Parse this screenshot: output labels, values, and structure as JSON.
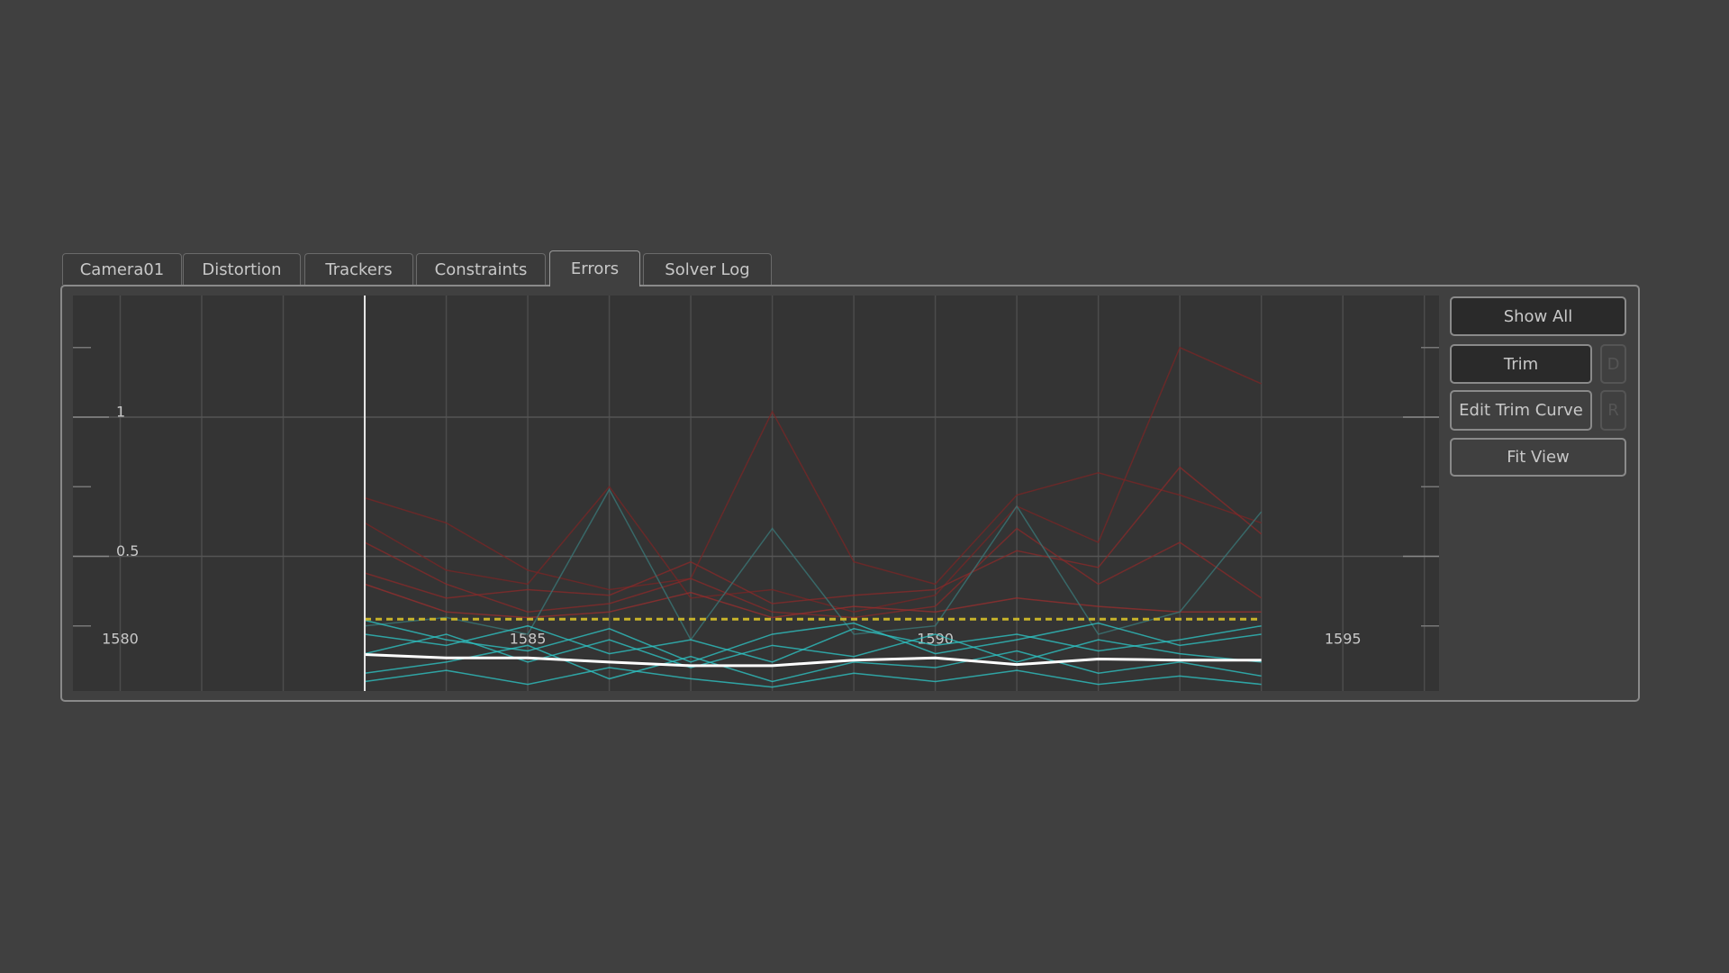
{
  "tabs": [
    "Camera01",
    "Distortion",
    "Trackers",
    "Constraints",
    "Errors",
    "Solver Log"
  ],
  "active_tab": 4,
  "buttons": {
    "show_all": "Show All",
    "trim": "Trim",
    "trim_key": "D",
    "edit_trim_curve": "Edit Trim Curve",
    "edit_key": "R",
    "fit_view": "Fit View"
  },
  "chart_data": {
    "type": "line",
    "xlim": [
      1579.42,
      1596.18
    ],
    "ylim": [
      0.016,
      1.437
    ],
    "xticks": [
      1580,
      1585,
      1590,
      1595
    ],
    "minor_xticks": [
      1581,
      1582,
      1583,
      1584,
      1586,
      1587,
      1588,
      1589,
      1591,
      1592,
      1593,
      1594,
      1596
    ],
    "yticks": [
      0.5,
      1
    ],
    "minor_yticks": [
      0.25,
      0.75,
      1.25
    ],
    "current_frame": 1583,
    "threshold": 0.274,
    "threshold_color": "#c8b42a",
    "x": [
      1583,
      1584,
      1585,
      1586,
      1587,
      1588,
      1589,
      1590,
      1591,
      1592,
      1593,
      1594
    ],
    "series": [
      {
        "color": "#7a2626",
        "values": [
          0.71,
          0.62,
          0.45,
          0.38,
          0.42,
          1.02,
          0.48,
          0.4,
          0.72,
          0.8,
          0.72,
          0.62
        ]
      },
      {
        "color": "#7a2626",
        "values": [
          0.62,
          0.45,
          0.4,
          0.75,
          0.35,
          0.38,
          0.3,
          0.36,
          0.68,
          0.55,
          1.25,
          1.12
        ]
      },
      {
        "color": "#8a2a2a",
        "values": [
          0.44,
          0.35,
          0.38,
          0.36,
          0.48,
          0.33,
          0.36,
          0.38,
          0.52,
          0.46,
          0.82,
          0.58
        ]
      },
      {
        "color": "#8a2a2a",
        "values": [
          0.55,
          0.4,
          0.3,
          0.33,
          0.42,
          0.3,
          0.28,
          0.32,
          0.6,
          0.4,
          0.55,
          0.35
        ]
      },
      {
        "color": "#9a2e2e",
        "values": [
          0.4,
          0.3,
          0.28,
          0.3,
          0.37,
          0.28,
          0.32,
          0.3,
          0.35,
          0.32,
          0.3,
          0.3
        ]
      },
      {
        "color": "#3a7a7a",
        "values": [
          0.25,
          0.28,
          0.22,
          0.74,
          0.2,
          0.6,
          0.22,
          0.25,
          0.68,
          0.22,
          0.3,
          0.66
        ]
      },
      {
        "color": "#2ec8c8",
        "values": [
          0.22,
          0.18,
          0.25,
          0.15,
          0.2,
          0.12,
          0.24,
          0.18,
          0.22,
          0.16,
          0.2,
          0.25
        ]
      },
      {
        "color": "#2ec8c8",
        "values": [
          0.15,
          0.22,
          0.12,
          0.2,
          0.1,
          0.18,
          0.14,
          0.22,
          0.12,
          0.2,
          0.15,
          0.12
        ]
      },
      {
        "color": "#2ec8c8",
        "values": [
          0.08,
          0.12,
          0.18,
          0.06,
          0.14,
          0.05,
          0.12,
          0.1,
          0.16,
          0.08,
          0.12,
          0.07
        ]
      },
      {
        "color": "#2ec8c8",
        "values": [
          0.27,
          0.2,
          0.16,
          0.24,
          0.12,
          0.22,
          0.26,
          0.15,
          0.2,
          0.26,
          0.18,
          0.22
        ]
      },
      {
        "color": "#2ec8c8",
        "values": [
          0.05,
          0.09,
          0.04,
          0.1,
          0.06,
          0.03,
          0.08,
          0.05,
          0.09,
          0.04,
          0.07,
          0.04
        ]
      },
      {
        "color": "#ffffff",
        "width": 3,
        "values": [
          0.147,
          0.135,
          0.135,
          0.12,
          0.107,
          0.107,
          0.127,
          0.135,
          0.111,
          0.131,
          0.127,
          0.127
        ]
      }
    ]
  }
}
